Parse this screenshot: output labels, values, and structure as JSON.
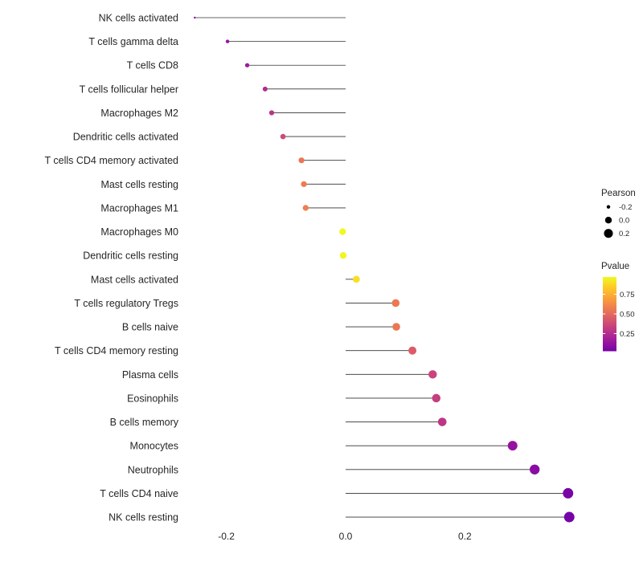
{
  "chart_data": {
    "type": "lollipop",
    "title": "",
    "xlabel": "",
    "ylabel": "",
    "x_ticks": [
      -0.2,
      0.0,
      0.2
    ],
    "x_tick_labels": [
      "-0.2",
      "0.0",
      "0.2"
    ],
    "xlim": [
      -0.31,
      0.42
    ],
    "grid": "off",
    "background": "#FFFFFF",
    "stem_color": "#333333",
    "text_color": "#262626",
    "categories": [
      "NK cells activated",
      "T cells gamma delta",
      "T cells CD8",
      "T cells follicular helper",
      "Macrophages M2",
      "Dendritic cells activated",
      "T cells CD4 memory activated",
      "Mast cells resting",
      "Macrophages M1",
      "Macrophages M0",
      "Dendritic cells resting",
      "Mast cells activated",
      "T cells regulatory  Tregs",
      "B cells naive",
      "T cells CD4 memory resting",
      "Plasma cells",
      "Eosinophils",
      "B cells memory",
      "Monocytes",
      "Neutrophils",
      "T cells CD4 naive",
      "NK cells resting"
    ],
    "series": [
      {
        "name": "Pearson",
        "values": [
          -0.253,
          -0.198,
          -0.165,
          -0.135,
          -0.124,
          -0.105,
          -0.074,
          -0.07,
          -0.067,
          -0.005,
          -0.004,
          0.018,
          0.084,
          0.085,
          0.112,
          0.146,
          0.152,
          0.162,
          0.28,
          0.317,
          0.373,
          0.375
        ]
      },
      {
        "name": "Pvalue",
        "values": [
          0.1,
          0.14,
          0.17,
          0.24,
          0.28,
          0.38,
          0.55,
          0.57,
          0.58,
          0.97,
          0.96,
          0.9,
          0.56,
          0.55,
          0.45,
          0.35,
          0.33,
          0.29,
          0.13,
          0.09,
          0.04,
          0.03
        ]
      }
    ],
    "legend": {
      "position": "right",
      "size": {
        "title": "Pearson",
        "tick_values": [
          -0.2,
          0.0,
          0.2
        ],
        "tick_labels": [
          "-0.2",
          "0.0",
          "0.2"
        ],
        "dot_color": "#000000"
      },
      "color": {
        "title": "Pvalue",
        "tick_values": [
          0.75,
          0.5,
          0.25
        ],
        "tick_labels": [
          "0.75",
          "0.50",
          "0.25"
        ],
        "colormap": "plasma",
        "top_color": "#F0F921",
        "bottom_color": "#7301A8"
      }
    }
  }
}
